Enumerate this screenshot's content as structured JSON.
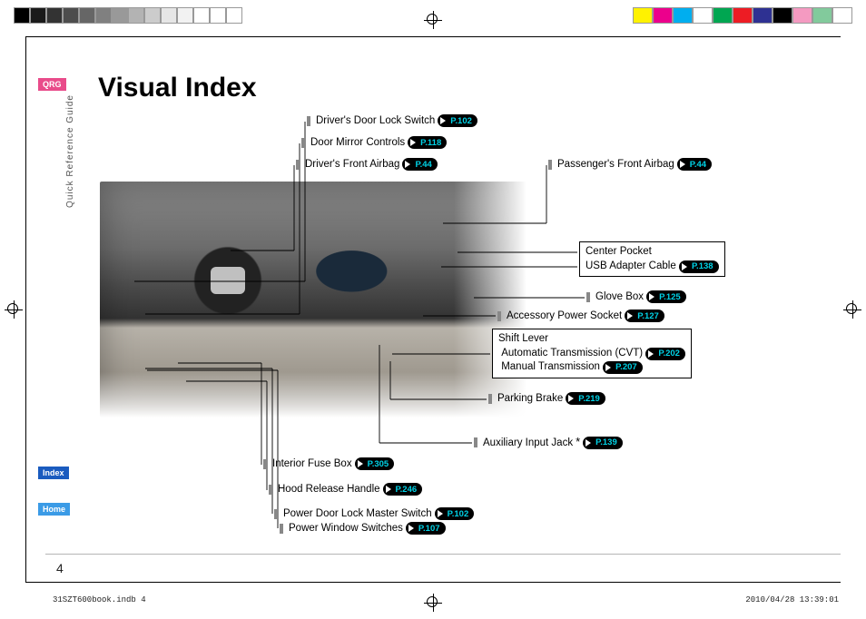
{
  "color_bars_left": [
    "#000000",
    "#1a1a1a",
    "#333333",
    "#4d4d4d",
    "#666666",
    "#808080",
    "#999999",
    "#b3b3b3",
    "#cccccc",
    "#e6e6e6",
    "#f2f2f2",
    "#ffffff",
    "#ffffff",
    "#ffffff"
  ],
  "color_bars_right": [
    "#fff200",
    "#ec008c",
    "#00aeef",
    "#ffffff",
    "#00a651",
    "#ed1c24",
    "#2e3192",
    "#000000",
    "#f49ac1",
    "#82ca9c",
    "#ffffff"
  ],
  "sidebar": {
    "qrg": "QRG",
    "index": "Index",
    "home": "Home",
    "guide_label": "Quick Reference Guide"
  },
  "title": "Visual Index",
  "page_number": "4",
  "footer": {
    "file": "31SZT600book.indb   4",
    "date": "2010/04/28   13:39:01"
  },
  "callouts_top": [
    {
      "label": "Driver's Door Lock Switch",
      "page": "P.102"
    },
    {
      "label": "Door Mirror Controls",
      "page": "P.118"
    },
    {
      "label": "Driver's Front Airbag",
      "page": "P.44"
    }
  ],
  "callout_passenger": {
    "label": "Passenger's Front Airbag",
    "page": "P.44"
  },
  "callouts_bottom": [
    {
      "label": "Interior Fuse Box",
      "page": "P.305"
    },
    {
      "label": "Hood Release Handle",
      "page": "P.246"
    },
    {
      "label": "Power Door Lock Master Switch",
      "page": "P.102"
    },
    {
      "label": "Power Window Switches",
      "page": "P.107"
    }
  ],
  "callouts_right": [
    {
      "label": "Center Pocket"
    },
    {
      "label": "USB Adapter Cable",
      "page": "P.138"
    },
    {
      "label": "Glove Box",
      "page": "P.125"
    },
    {
      "label": "Accessory Power Socket",
      "page": "P.127"
    },
    {
      "box": true,
      "lines": [
        {
          "label": "Shift Lever"
        },
        {
          "label": "Automatic Transmission (CVT)",
          "page": "P.202"
        },
        {
          "label": "Manual Transmission",
          "page": "P.207"
        }
      ]
    },
    {
      "label": "Parking Brake",
      "page": "P.219"
    },
    {
      "label": "Auxiliary Input Jack",
      "asterisk": true,
      "page": "P.139"
    }
  ]
}
